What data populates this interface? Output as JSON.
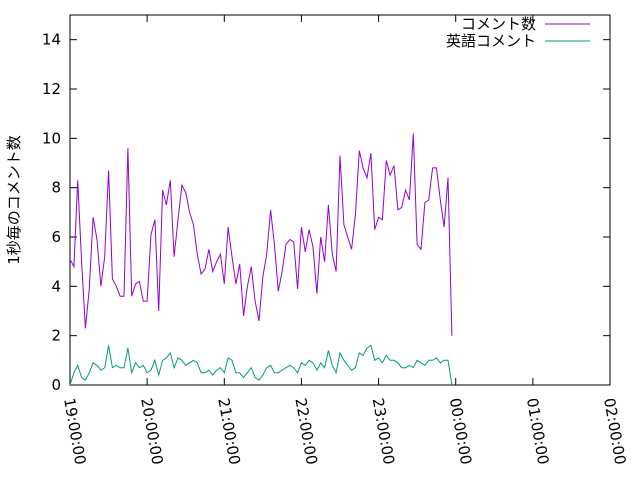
{
  "chart_data": {
    "type": "line",
    "title": "",
    "xlabel": "",
    "ylabel": "1秒毎のコメント数",
    "xlim": [
      "19:00:00",
      "02:00:00"
    ],
    "ylim": [
      0,
      15
    ],
    "x_ticks": [
      "19:00:00",
      "20:00:00",
      "21:00:00",
      "22:00:00",
      "23:00:00",
      "00:00:00",
      "01:00:00",
      "02:00:00"
    ],
    "y_ticks": [
      "0",
      "2",
      "4",
      "6",
      "8",
      "10",
      "12",
      "14"
    ],
    "grid": false,
    "legend": "top-right",
    "x_interval_minutes": 3,
    "series": [
      {
        "name": "コメント数",
        "color": "#9400d3",
        "values": [
          5.1,
          4.8,
          8.3,
          5.0,
          2.3,
          3.9,
          6.8,
          5.9,
          4.0,
          5.2,
          8.7,
          4.3,
          4.0,
          3.6,
          3.6,
          9.6,
          3.6,
          4.1,
          4.2,
          3.4,
          3.4,
          6.1,
          6.7,
          3.0,
          7.9,
          7.3,
          8.3,
          5.2,
          6.7,
          8.1,
          7.8,
          7.0,
          6.5,
          5.3,
          4.5,
          4.7,
          5.5,
          4.6,
          5.0,
          5.3,
          4.1,
          6.4,
          5.2,
          4.1,
          4.9,
          2.8,
          4.0,
          4.8,
          3.4,
          2.6,
          4.4,
          5.3,
          7.1,
          5.7,
          3.8,
          4.6,
          5.7,
          5.9,
          5.8,
          3.9,
          6.4,
          5.4,
          6.3,
          5.6,
          3.7,
          6.0,
          5.0,
          7.3,
          5.3,
          4.6,
          9.3,
          6.5,
          6.0,
          5.5,
          6.9,
          9.5,
          8.8,
          8.4,
          9.4,
          6.3,
          6.8,
          6.7,
          9.1,
          8.5,
          8.9,
          7.1,
          7.2,
          7.9,
          7.5,
          10.2,
          5.7,
          5.5,
          7.4,
          7.5,
          8.8,
          8.8,
          7.5,
          6.4,
          8.4,
          2.0
        ]
      },
      {
        "name": "英語コメント",
        "color": "#009e73",
        "values": [
          0.0,
          0.5,
          0.8,
          0.3,
          0.2,
          0.5,
          0.9,
          0.8,
          0.6,
          0.7,
          1.6,
          0.7,
          0.8,
          0.7,
          0.7,
          1.5,
          0.5,
          0.9,
          0.7,
          0.8,
          0.5,
          0.6,
          1.0,
          0.4,
          1.0,
          1.1,
          1.3,
          0.7,
          1.1,
          1.0,
          0.8,
          0.9,
          1.0,
          0.9,
          0.5,
          0.5,
          0.6,
          0.4,
          0.6,
          0.7,
          0.5,
          1.1,
          1.0,
          0.5,
          0.5,
          0.3,
          0.5,
          0.7,
          0.3,
          0.2,
          0.4,
          0.7,
          0.8,
          0.5,
          0.5,
          0.6,
          0.7,
          0.8,
          0.7,
          0.5,
          0.9,
          0.8,
          1.0,
          0.9,
          0.6,
          0.9,
          0.7,
          1.4,
          0.8,
          0.5,
          1.3,
          1.0,
          0.8,
          0.6,
          0.7,
          1.3,
          1.2,
          1.5,
          1.6,
          1.0,
          1.1,
          0.9,
          1.2,
          1.0,
          1.0,
          0.9,
          0.7,
          0.7,
          0.8,
          0.7,
          1.0,
          0.9,
          0.8,
          1.0,
          1.0,
          1.1,
          0.9,
          1.0,
          1.0,
          0.0
        ]
      }
    ]
  }
}
